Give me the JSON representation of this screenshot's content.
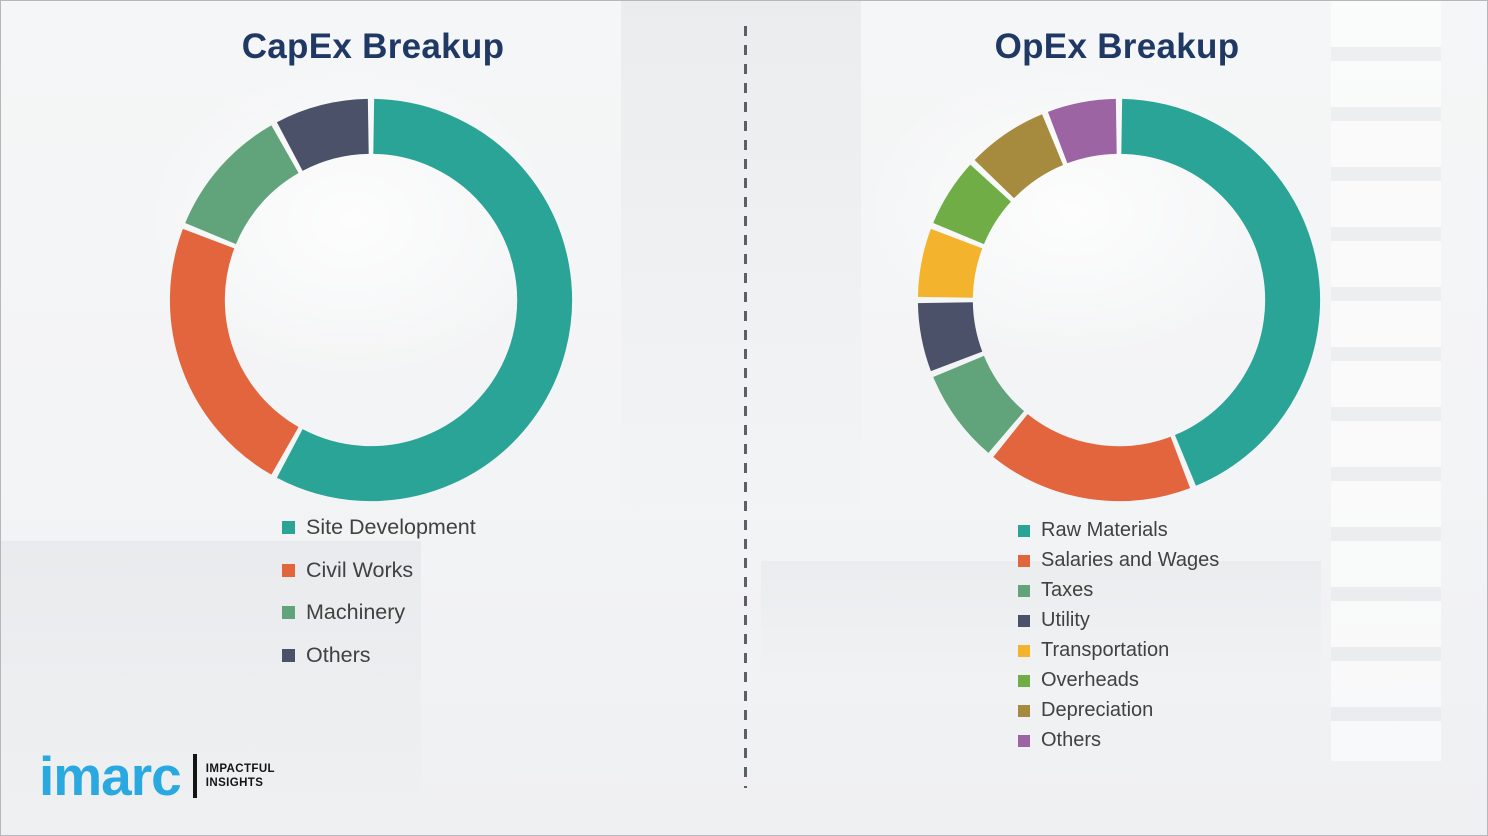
{
  "title_color": "#1f3864",
  "brand": {
    "name": "imarc",
    "tagline_line1": "IMPACTFUL",
    "tagline_line2": "INSIGHTS",
    "brand_color": "#29a9e0"
  },
  "chart_data": [
    {
      "type": "pie",
      "subtype": "donut",
      "title": "CapEx Breakup",
      "categories": [
        "Site Development",
        "Civil Works",
        "Machinery",
        "Others"
      ],
      "values": [
        58,
        23,
        11,
        8
      ],
      "unit": "%",
      "values_estimated_from_arc_angles": true,
      "colors": [
        "#2aa496",
        "#e2653e",
        "#61a37a",
        "#4b5169"
      ],
      "legend_position": "below-chart-left",
      "data_labels": false
    },
    {
      "type": "pie",
      "subtype": "donut",
      "title": "OpEx Breakup",
      "categories": [
        "Raw Materials",
        "Salaries and Wages",
        "Taxes",
        "Utility",
        "Transportation",
        "Overheads",
        "Depreciation",
        "Others"
      ],
      "values": [
        44,
        17,
        8,
        6,
        6,
        6,
        7,
        6
      ],
      "unit": "%",
      "values_estimated_from_arc_angles": true,
      "colors": [
        "#2aa496",
        "#e2653e",
        "#61a37a",
        "#4b5169",
        "#f4b32c",
        "#70ad47",
        "#a68b3f",
        "#9c64a3"
      ],
      "legend_position": "below-chart-left",
      "data_labels": false
    }
  ]
}
